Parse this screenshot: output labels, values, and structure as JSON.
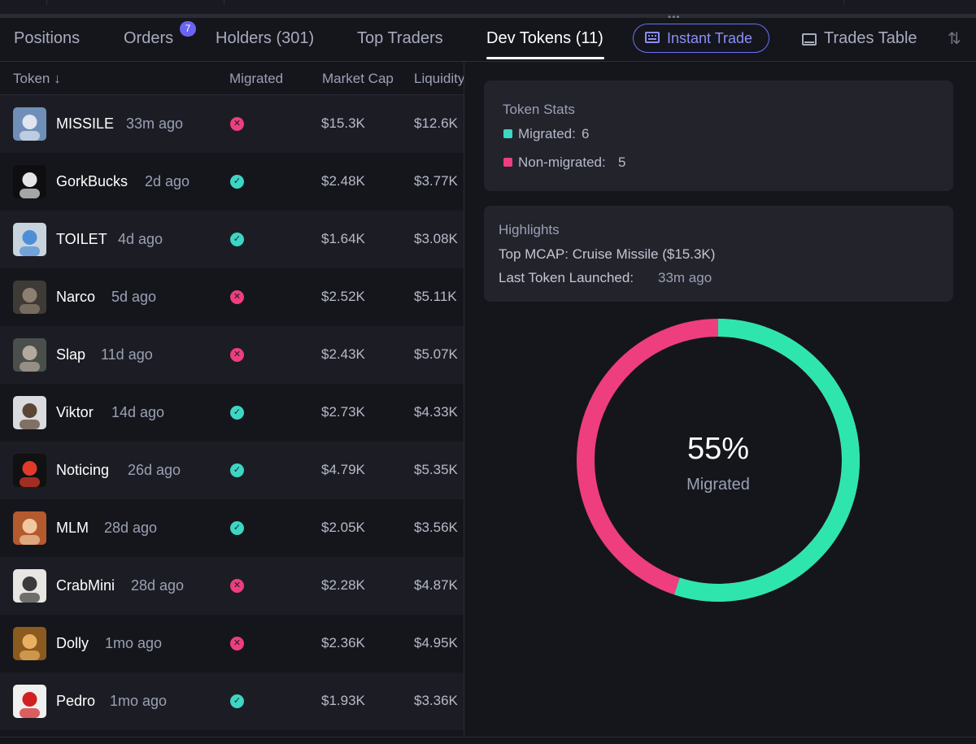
{
  "tabs": {
    "positions": "Positions",
    "orders": "Orders",
    "orders_badge": "7",
    "holders": "Holders (301)",
    "top_traders": "Top Traders",
    "dev_tokens": "Dev Tokens (11)",
    "instant_trade": "Instant Trade",
    "trades_table": "Trades Table"
  },
  "table": {
    "headers": {
      "token": "Token ↓",
      "migrated": "Migrated",
      "market_cap": "Market Cap",
      "liquidity": "Liquidity"
    },
    "rows": [
      {
        "name": "MISSILE",
        "age": "33m ago",
        "migrated": false,
        "mcap": "$15.3K",
        "liquidity": "$12.6K"
      },
      {
        "name": "GorkBucks",
        "age": "2d ago",
        "migrated": true,
        "mcap": "$2.48K",
        "liquidity": "$3.77K"
      },
      {
        "name": "TOILET",
        "age": "4d ago",
        "migrated": true,
        "mcap": "$1.64K",
        "liquidity": "$3.08K"
      },
      {
        "name": "Narco",
        "age": "5d ago",
        "migrated": false,
        "mcap": "$2.52K",
        "liquidity": "$5.11K"
      },
      {
        "name": "Slap",
        "age": "11d ago",
        "migrated": false,
        "mcap": "$2.43K",
        "liquidity": "$5.07K"
      },
      {
        "name": "Viktor",
        "age": "14d ago",
        "migrated": true,
        "mcap": "$2.73K",
        "liquidity": "$4.33K"
      },
      {
        "name": "Noticing",
        "age": "26d ago",
        "migrated": true,
        "mcap": "$4.79K",
        "liquidity": "$5.35K"
      },
      {
        "name": "MLM",
        "age": "28d ago",
        "migrated": true,
        "mcap": "$2.05K",
        "liquidity": "$3.56K"
      },
      {
        "name": "CrabMini",
        "age": "28d ago",
        "migrated": false,
        "mcap": "$2.28K",
        "liquidity": "$4.87K"
      },
      {
        "name": "Dolly",
        "age": "1mo ago",
        "migrated": false,
        "mcap": "$2.36K",
        "liquidity": "$4.95K"
      },
      {
        "name": "Pedro",
        "age": "1mo ago",
        "migrated": true,
        "mcap": "$1.93K",
        "liquidity": "$3.36K"
      }
    ]
  },
  "stats": {
    "title": "Token Stats",
    "migrated_label": "Migrated:",
    "migrated_count": "6",
    "non_migrated_label": "Non-migrated:",
    "non_migrated_count": "5"
  },
  "highlights": {
    "title": "Highlights",
    "top_mcap": "Top MCAP: Cruise Missile ($15.3K)",
    "last_label": "Last Token Launched:",
    "last_value": "33m ago"
  },
  "donut": {
    "percent_text": "55%",
    "label": "Migrated",
    "migrated_fraction": 0.55
  },
  "colors": {
    "migrated": "#2ee6ad",
    "non_migrated": "#ee3e7e",
    "accent": "#6c6ff5"
  },
  "avatars": [
    {
      "bg": "#6f8fb8",
      "fg": "#dfe6ef"
    },
    {
      "bg": "#0e0e10",
      "fg": "#e5e5e5"
    },
    {
      "bg": "#c9d3de",
      "fg": "#4d8fd6"
    },
    {
      "bg": "#3e3a36",
      "fg": "#8e8070"
    },
    {
      "bg": "#4a4f4b",
      "fg": "#b3a99c"
    },
    {
      "bg": "#d9dbde",
      "fg": "#5a4535"
    },
    {
      "bg": "#111111",
      "fg": "#e03a2a"
    },
    {
      "bg": "#b35a2f",
      "fg": "#f2c8a0"
    },
    {
      "bg": "#e8e6e2",
      "fg": "#3a3a3a"
    },
    {
      "bg": "#8a5a1e",
      "fg": "#e8b060"
    },
    {
      "bg": "#f0f0f0",
      "fg": "#d02020"
    }
  ]
}
